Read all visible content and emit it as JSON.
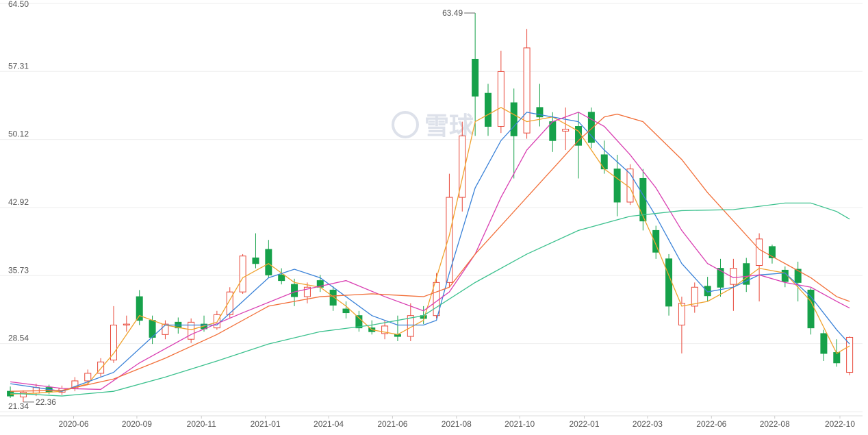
{
  "chart_data": {
    "type": "candlestick",
    "watermark": "雪球",
    "grid": true,
    "up_color": "#e8483a",
    "down_color": "#16a14a",
    "xlim": [
      -1.6,
      132
    ],
    "ylim": [
      21.34,
      64.5
    ],
    "yticks": [
      {
        "value": 21.34,
        "label": "21.34"
      },
      {
        "value": 28.54,
        "label": "28.54"
      },
      {
        "value": 35.73,
        "label": "35.73"
      },
      {
        "value": 42.92,
        "label": "42.92"
      },
      {
        "value": 50.12,
        "label": "50.12"
      },
      {
        "value": 57.31,
        "label": "57.31"
      },
      {
        "value": 64.5,
        "label": "64.50"
      }
    ],
    "xticks": [
      {
        "value": 9.8,
        "label": "2020-06"
      },
      {
        "value": 19.6,
        "label": "2020-09"
      },
      {
        "value": 29.6,
        "label": "2020-11"
      },
      {
        "value": 39.5,
        "label": "2021-01"
      },
      {
        "value": 49.3,
        "label": "2021-04"
      },
      {
        "value": 59.2,
        "label": "2021-06"
      },
      {
        "value": 69.1,
        "label": "2021-08"
      },
      {
        "value": 78.9,
        "label": "2021-10"
      },
      {
        "value": 88.9,
        "label": "2022-01"
      },
      {
        "value": 98.7,
        "label": "2022-03"
      },
      {
        "value": 108.6,
        "label": "2022-06"
      },
      {
        "value": 118.4,
        "label": "2022-08"
      },
      {
        "value": 128.5,
        "label": "2022-10"
      }
    ],
    "x": [
      0,
      2,
      4,
      6,
      8,
      10,
      12,
      14,
      16,
      18,
      20,
      22,
      24,
      26,
      28,
      30,
      32,
      34,
      36,
      38,
      40,
      42,
      44,
      46,
      48,
      50,
      52,
      54,
      56,
      58,
      60,
      62,
      64,
      66,
      68,
      70,
      72,
      74,
      76,
      78,
      80,
      82,
      84,
      86,
      88,
      90,
      92,
      94,
      96,
      98,
      100,
      102,
      104,
      106,
      108,
      110,
      112,
      114,
      116,
      118,
      120,
      122,
      124,
      126,
      128,
      130
    ],
    "open": [
      23.5,
      22.9,
      23.3,
      23.9,
      23.4,
      23.8,
      24.6,
      25.4,
      26.8,
      30.5,
      33.5,
      31,
      29.5,
      30.8,
      29,
      30.6,
      30.2,
      31.6,
      34,
      37.6,
      38.5,
      35.8,
      34.8,
      33.5,
      35.2,
      34.2,
      32.2,
      31.5,
      30.2,
      29.6,
      29.5,
      29.3,
      31.5,
      31.5,
      35,
      44,
      58.6,
      55,
      51.5,
      54,
      50.8,
      53.5,
      52,
      51,
      51.5,
      53,
      48.5,
      47,
      43.5,
      46,
      40.5,
      37.5,
      30.5,
      32.5,
      34.6,
      36.5,
      34.8,
      37,
      36.8,
      38.8,
      36.3,
      36.4,
      34.2,
      29.6,
      27.6,
      25.5
    ],
    "high": [
      24,
      23.6,
      24.3,
      24.2,
      24.1,
      25,
      25.8,
      27,
      32.5,
      31.5,
      34.2,
      31.5,
      31,
      31.3,
      31.2,
      31.5,
      32,
      34.5,
      38,
      40.2,
      39.5,
      36.5,
      35.4,
      35,
      35.8,
      34.6,
      33,
      32,
      31,
      31,
      31.5,
      32.8,
      32.5,
      36,
      46.5,
      52,
      63.49,
      56,
      59.5,
      55.5,
      61.8,
      56,
      53,
      53.5,
      53,
      53.5,
      50,
      48.5,
      47.5,
      47,
      41,
      38,
      33.5,
      35,
      35.6,
      37.5,
      37.5,
      37.6,
      40.2,
      39,
      36.7,
      37.2,
      34.4,
      30,
      29,
      29.3
    ],
    "low": [
      22.8,
      22.36,
      23,
      23.2,
      23.1,
      23.5,
      24.3,
      25,
      26.5,
      29.8,
      30.5,
      28.5,
      29,
      29.6,
      28.6,
      29.8,
      30,
      31.2,
      33.8,
      36.5,
      35.5,
      34.8,
      32.5,
      32.8,
      34,
      32,
      31.2,
      29.8,
      29.5,
      29,
      28.8,
      28.8,
      30.6,
      31.2,
      34.5,
      42.5,
      50.5,
      50.5,
      50.8,
      46,
      50.2,
      51.5,
      48.8,
      49,
      46,
      49.2,
      46.5,
      42,
      43.2,
      40.5,
      37.5,
      31.5,
      27.5,
      31.8,
      33,
      33.5,
      32,
      34,
      33,
      37,
      34.5,
      33,
      29.5,
      26.7,
      26.1,
      25.2
    ],
    "close": [
      23,
      23.4,
      23.9,
      23.4,
      23.8,
      24.6,
      25.4,
      26.6,
      30.5,
      30.6,
      31,
      29.2,
      30.6,
      30.2,
      30.8,
      30.1,
      31.6,
      34,
      37.8,
      37,
      35.8,
      35.2,
      33.5,
      34.5,
      34.5,
      32.6,
      31.8,
      30.2,
      29.8,
      30.4,
      29.3,
      31.5,
      31.2,
      35,
      44,
      50.5,
      54.7,
      51.5,
      57.3,
      50.5,
      59.8,
      52.5,
      50,
      51.2,
      49.5,
      49.8,
      47,
      43.5,
      47,
      41.5,
      38.2,
      32.5,
      32.8,
      34.5,
      33.6,
      34.5,
      36.5,
      34.8,
      39.6,
      37.6,
      35.1,
      35,
      30.2,
      27.5,
      26.5,
      29.2
    ],
    "ma": [
      {
        "color": "#f0a22e",
        "x": [
          0,
          4,
          8,
          12,
          16,
          20,
          24,
          28,
          32,
          36,
          40,
          44,
          48,
          52,
          56,
          60,
          64,
          68,
          72,
          76,
          80,
          84,
          88,
          92,
          96,
          100,
          104,
          108,
          112,
          116,
          120,
          124,
          128,
          130
        ],
        "values": [
          23.2,
          23.3,
          23.5,
          24.3,
          27.5,
          31.5,
          30.5,
          30,
          30.8,
          35.5,
          37,
          35,
          34.5,
          32.5,
          30,
          29.5,
          31,
          40,
          52,
          53.5,
          52,
          52.5,
          51,
          47,
          45,
          39,
          32.5,
          33,
          34.5,
          36.5,
          36,
          33,
          27.5,
          28.3
        ]
      },
      {
        "color": "#3a82d8",
        "x": [
          0,
          8,
          16,
          24,
          32,
          36,
          40,
          44,
          48,
          52,
          56,
          60,
          64,
          66,
          68,
          72,
          76,
          80,
          84,
          88,
          92,
          96,
          100,
          104,
          108,
          112,
          116,
          120,
          124,
          128,
          130
        ],
        "values": [
          24.3,
          23.5,
          25.5,
          30.5,
          30.5,
          33,
          35.5,
          36.4,
          35.5,
          33.5,
          31.5,
          30.5,
          30.5,
          31,
          36,
          45,
          50,
          53,
          52.5,
          52,
          49,
          46.5,
          42,
          37,
          34,
          34.5,
          35.8,
          36,
          33.5,
          30,
          28.5
        ]
      },
      {
        "color": "#d93fb2",
        "x": [
          0,
          8,
          14,
          20,
          28,
          36,
          44,
          52,
          58,
          64,
          68,
          72,
          76,
          80,
          84,
          88,
          92,
          96,
          100,
          104,
          108,
          112,
          116,
          120,
          124,
          128,
          130
        ],
        "values": [
          24.5,
          23.8,
          23.7,
          26.5,
          29.5,
          31.8,
          34,
          35.2,
          33.5,
          32,
          34,
          38,
          44,
          49,
          52,
          53,
          51.5,
          48.5,
          45,
          40.5,
          37,
          35.5,
          35.8,
          35,
          34.5,
          33,
          32.3
        ]
      },
      {
        "color": "#f2703a",
        "x": [
          0,
          8,
          16,
          24,
          32,
          40,
          48,
          56,
          64,
          68,
          72,
          76,
          80,
          84,
          88,
          92,
          94,
          98,
          104,
          108,
          112,
          116,
          120,
          124,
          128,
          130
        ],
        "values": [
          23.5,
          23.6,
          24.8,
          27,
          29.5,
          32.5,
          33.5,
          33.8,
          33.5,
          34.5,
          38,
          41,
          44,
          47,
          50,
          52.5,
          52.8,
          52,
          48,
          44.5,
          41.5,
          38.5,
          37,
          35.5,
          33.5,
          33
        ]
      },
      {
        "color": "#3cc18e",
        "x": [
          0,
          8,
          16,
          24,
          32,
          40,
          48,
          56,
          64,
          72,
          80,
          88,
          96,
          104,
          112,
          120,
          124,
          128,
          130
        ],
        "values": [
          23.3,
          23,
          23.5,
          25,
          26.7,
          28.5,
          29.8,
          30.5,
          31.5,
          35,
          38,
          40.5,
          42,
          42.6,
          42.7,
          43.4,
          43.4,
          42.5,
          41.7
        ]
      }
    ],
    "annotations": [
      {
        "x": 72,
        "y": 63.49,
        "label": "63.49"
      },
      {
        "x": 2,
        "y": 22.36,
        "label": "22.36"
      }
    ]
  }
}
